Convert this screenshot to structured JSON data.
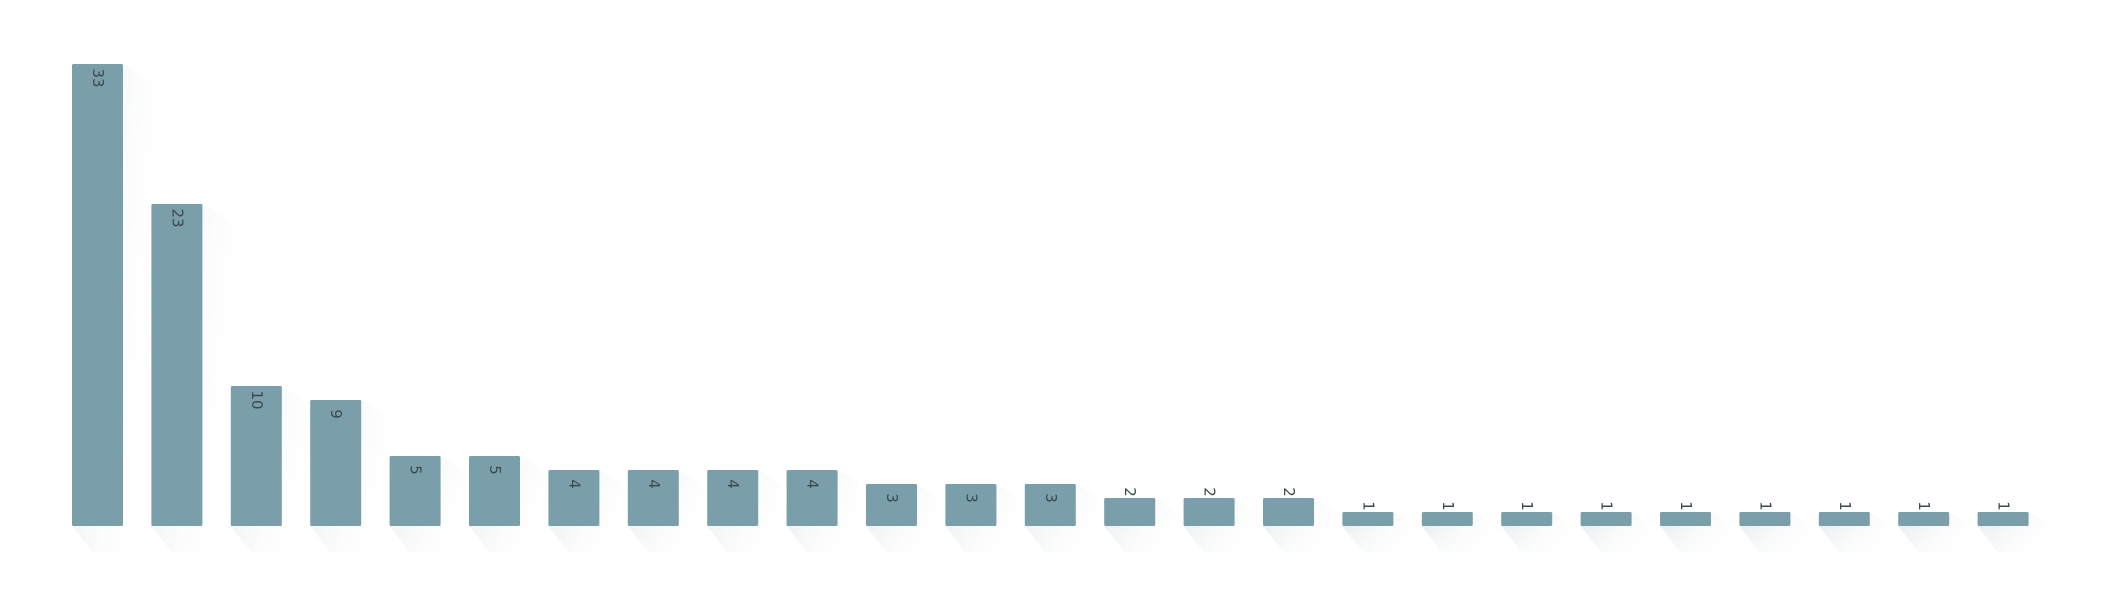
{
  "chart_data": {
    "type": "bar",
    "values": [
      33,
      23,
      10,
      9,
      5,
      5,
      4,
      4,
      4,
      4,
      3,
      3,
      3,
      2,
      2,
      2,
      1,
      1,
      1,
      1,
      1,
      1,
      1,
      1,
      1
    ],
    "color": "#7a9fab",
    "ylim": [
      0,
      33
    ]
  }
}
